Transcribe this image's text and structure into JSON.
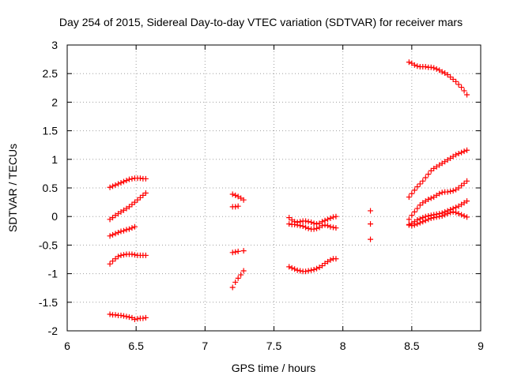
{
  "chart_data": {
    "type": "scatter",
    "title": "Day 254 of 2015, Sidereal Day-to-day VTEC variation (SDTVAR) for receiver mars",
    "xlabel": "GPS time / hours",
    "ylabel": "SDTVAR / TECUs",
    "xlim": [
      6,
      9
    ],
    "ylim": [
      -2,
      3
    ],
    "xticks": [
      6,
      6.5,
      7,
      7.5,
      8,
      8.5,
      9
    ],
    "xtick_labels": [
      "6",
      "6.5",
      "7",
      "7.5",
      "8",
      "8.5",
      "9"
    ],
    "yticks": [
      -2,
      -1.5,
      -1,
      -0.5,
      0,
      0.5,
      1,
      1.5,
      2,
      2.5,
      3
    ],
    "ytick_labels": [
      "-2",
      "-1.5",
      "-1",
      "-0.5",
      "0",
      "0.5",
      "1",
      "1.5",
      "2",
      "2.5",
      "3"
    ],
    "grid": true,
    "marker": "+",
    "color": "#ff0000",
    "series": [
      {
        "name": "seg-a1",
        "x": [
          6.31,
          6.33,
          6.35,
          6.37,
          6.39,
          6.41,
          6.43,
          6.45,
          6.47,
          6.49,
          6.51,
          6.53,
          6.55,
          6.57
        ],
        "y": [
          0.51,
          0.53,
          0.55,
          0.57,
          0.59,
          0.61,
          0.63,
          0.65,
          0.66,
          0.67,
          0.67,
          0.67,
          0.66,
          0.66
        ]
      },
      {
        "name": "seg-a2",
        "x": [
          6.31,
          6.33,
          6.35,
          6.37,
          6.39,
          6.41,
          6.43,
          6.45,
          6.47,
          6.49,
          6.51,
          6.53,
          6.55,
          6.57
        ],
        "y": [
          -0.05,
          -0.02,
          0.02,
          0.05,
          0.08,
          0.11,
          0.14,
          0.17,
          0.21,
          0.25,
          0.29,
          0.33,
          0.37,
          0.41
        ]
      },
      {
        "name": "seg-a3",
        "x": [
          6.31,
          6.33,
          6.35,
          6.37,
          6.39,
          6.41,
          6.43,
          6.45,
          6.47,
          6.49
        ],
        "y": [
          -0.34,
          -0.32,
          -0.3,
          -0.28,
          -0.26,
          -0.25,
          -0.23,
          -0.22,
          -0.2,
          -0.18
        ]
      },
      {
        "name": "seg-a4",
        "x": [
          6.31,
          6.33,
          6.35,
          6.37,
          6.39,
          6.41,
          6.43,
          6.45,
          6.47,
          6.49,
          6.51,
          6.53,
          6.55,
          6.57
        ],
        "y": [
          -0.83,
          -0.78,
          -0.74,
          -0.7,
          -0.68,
          -0.67,
          -0.66,
          -0.66,
          -0.66,
          -0.67,
          -0.68,
          -0.68,
          -0.68,
          -0.68
        ]
      },
      {
        "name": "seg-a5",
        "x": [
          6.31,
          6.33,
          6.35,
          6.37,
          6.39,
          6.41,
          6.43,
          6.45,
          6.47,
          6.49,
          6.51,
          6.53,
          6.55,
          6.57
        ],
        "y": [
          -1.71,
          -1.72,
          -1.72,
          -1.73,
          -1.73,
          -1.74,
          -1.75,
          -1.76,
          -1.77,
          -1.8,
          -1.79,
          -1.78,
          -1.78,
          -1.77
        ]
      },
      {
        "name": "seg-b1",
        "x": [
          7.2,
          7.22,
          7.24,
          7.26,
          7.28
        ],
        "y": [
          0.39,
          0.37,
          0.35,
          0.32,
          0.29
        ]
      },
      {
        "name": "seg-b2",
        "x": [
          7.2,
          7.22,
          7.24
        ],
        "y": [
          0.17,
          0.17,
          0.18
        ]
      },
      {
        "name": "seg-b3",
        "x": [
          7.2,
          7.22,
          7.24,
          7.28
        ],
        "y": [
          -0.63,
          -0.62,
          -0.61,
          -0.6
        ]
      },
      {
        "name": "seg-b4",
        "x": [
          7.2,
          7.22,
          7.24,
          7.26,
          7.28
        ],
        "y": [
          -1.24,
          -1.15,
          -1.08,
          -1.02,
          -0.95
        ]
      },
      {
        "name": "seg-c1",
        "x": [
          7.61,
          7.63,
          7.65,
          7.67,
          7.69,
          7.71,
          7.73,
          7.75,
          7.77,
          7.79,
          7.81,
          7.83,
          7.85,
          7.87,
          7.89,
          7.91,
          7.93,
          7.95
        ],
        "y": [
          -0.02,
          -0.06,
          -0.09,
          -0.1,
          -0.09,
          -0.08,
          -0.08,
          -0.09,
          -0.1,
          -0.12,
          -0.13,
          -0.12,
          -0.09,
          -0.07,
          -0.05,
          -0.03,
          -0.01,
          0.0
        ]
      },
      {
        "name": "seg-c2",
        "x": [
          7.61,
          7.63,
          7.65,
          7.67,
          7.69,
          7.71,
          7.73,
          7.75,
          7.77,
          7.79,
          7.81,
          7.83,
          7.85,
          7.87,
          7.89,
          7.91,
          7.93,
          7.95
        ],
        "y": [
          -0.13,
          -0.14,
          -0.14,
          -0.15,
          -0.16,
          -0.17,
          -0.19,
          -0.21,
          -0.22,
          -0.22,
          -0.21,
          -0.19,
          -0.16,
          -0.15,
          -0.16,
          -0.18,
          -0.19,
          -0.2
        ]
      },
      {
        "name": "seg-c3",
        "x": [
          7.61,
          7.63,
          7.65,
          7.67,
          7.69,
          7.71,
          7.73,
          7.75,
          7.77,
          7.79,
          7.81,
          7.83,
          7.85,
          7.87,
          7.89,
          7.91,
          7.93,
          7.95
        ],
        "y": [
          -0.88,
          -0.9,
          -0.92,
          -0.94,
          -0.95,
          -0.96,
          -0.96,
          -0.95,
          -0.94,
          -0.93,
          -0.91,
          -0.89,
          -0.86,
          -0.82,
          -0.79,
          -0.76,
          -0.74,
          -0.74
        ]
      },
      {
        "name": "seg-d1",
        "x": [
          8.2,
          8.2,
          8.2
        ],
        "y": [
          0.1,
          -0.13,
          -0.4
        ]
      },
      {
        "name": "seg-e1",
        "x": [
          8.48,
          8.5,
          8.52,
          8.54,
          8.56,
          8.58,
          8.6,
          8.62,
          8.64,
          8.66,
          8.68,
          8.7,
          8.72,
          8.74,
          8.76,
          8.78,
          8.8,
          8.82,
          8.84,
          8.86,
          8.88,
          8.9
        ],
        "y": [
          2.7,
          2.68,
          2.65,
          2.63,
          2.62,
          2.62,
          2.62,
          2.61,
          2.61,
          2.6,
          2.58,
          2.56,
          2.53,
          2.51,
          2.48,
          2.44,
          2.4,
          2.36,
          2.31,
          2.26,
          2.2,
          2.13
        ]
      },
      {
        "name": "seg-e2",
        "x": [
          8.48,
          8.5,
          8.52,
          8.54,
          8.56,
          8.58,
          8.6,
          8.62,
          8.64,
          8.66,
          8.68,
          8.7,
          8.72,
          8.74,
          8.76,
          8.78,
          8.8,
          8.82,
          8.84,
          8.86,
          8.88,
          8.9
        ],
        "y": [
          0.34,
          0.4,
          0.46,
          0.52,
          0.57,
          0.62,
          0.68,
          0.74,
          0.8,
          0.84,
          0.87,
          0.9,
          0.93,
          0.96,
          0.99,
          1.02,
          1.05,
          1.08,
          1.1,
          1.12,
          1.14,
          1.16
        ]
      },
      {
        "name": "seg-e3",
        "x": [
          8.48,
          8.5,
          8.52,
          8.54,
          8.56,
          8.58,
          8.6,
          8.62,
          8.64,
          8.66,
          8.68,
          8.7,
          8.72,
          8.74,
          8.76,
          8.78,
          8.8,
          8.82,
          8.84,
          8.86,
          8.88,
          8.9
        ],
        "y": [
          -0.05,
          0.02,
          0.08,
          0.14,
          0.2,
          0.24,
          0.27,
          0.3,
          0.32,
          0.34,
          0.37,
          0.4,
          0.42,
          0.43,
          0.43,
          0.44,
          0.45,
          0.47,
          0.5,
          0.54,
          0.58,
          0.62
        ]
      },
      {
        "name": "seg-e4",
        "x": [
          8.48,
          8.5,
          8.52,
          8.54,
          8.56,
          8.58,
          8.6,
          8.62,
          8.64,
          8.66,
          8.68,
          8.7,
          8.72,
          8.74,
          8.76,
          8.78,
          8.8,
          8.82,
          8.84,
          8.86,
          8.88,
          8.9
        ],
        "y": [
          -0.15,
          -0.12,
          -0.09,
          -0.06,
          -0.04,
          -0.02,
          0.0,
          0.01,
          0.02,
          0.03,
          0.04,
          0.05,
          0.06,
          0.08,
          0.1,
          0.12,
          0.14,
          0.16,
          0.18,
          0.21,
          0.24,
          0.27
        ]
      },
      {
        "name": "seg-e5",
        "x": [
          8.48,
          8.5,
          8.52,
          8.54,
          8.56,
          8.58,
          8.6,
          8.62,
          8.64,
          8.66,
          8.68,
          8.7,
          8.72,
          8.74,
          8.76,
          8.78,
          8.8,
          8.82,
          8.84,
          8.86,
          8.88,
          8.9
        ],
        "y": [
          -0.14,
          -0.16,
          -0.15,
          -0.13,
          -0.11,
          -0.09,
          -0.07,
          -0.05,
          -0.03,
          -0.02,
          -0.01,
          0.0,
          0.01,
          0.03,
          0.05,
          0.07,
          0.08,
          0.07,
          0.05,
          0.03,
          0.01,
          -0.01
        ]
      }
    ]
  }
}
